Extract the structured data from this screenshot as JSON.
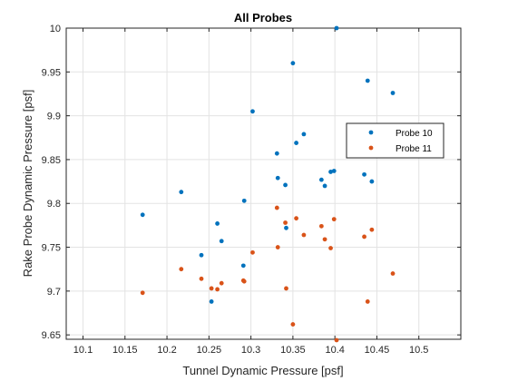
{
  "chart_data": {
    "type": "scatter",
    "title": "All Probes",
    "xlabel": "Tunnel Dynamic Pressure [psf]",
    "ylabel": "Rake Probe Dynamic Pressure [psf]",
    "xlim": [
      10.08,
      10.55
    ],
    "ylim": [
      9.645,
      10.0
    ],
    "xticks": [
      "10.1",
      "10.15",
      "10.2",
      "10.25",
      "10.3",
      "10.35",
      "10.4",
      "10.45",
      "10.5"
    ],
    "yticks": [
      "9.65",
      "9.7",
      "9.75",
      "9.8",
      "9.85",
      "9.9",
      "9.95",
      "10"
    ],
    "grid": true,
    "legend_position": "top-right",
    "series": [
      {
        "name": "Probe 10",
        "color": "#0072BD",
        "points": [
          [
            10.171,
            9.787
          ],
          [
            10.217,
            9.813
          ],
          [
            10.241,
            9.741
          ],
          [
            10.253,
            9.688
          ],
          [
            10.26,
            9.777
          ],
          [
            10.265,
            9.757
          ],
          [
            10.291,
            9.729
          ],
          [
            10.292,
            9.803
          ],
          [
            10.302,
            9.905
          ],
          [
            10.331,
            9.857
          ],
          [
            10.332,
            9.829
          ],
          [
            10.341,
            9.821
          ],
          [
            10.342,
            9.772
          ],
          [
            10.35,
            9.96
          ],
          [
            10.354,
            9.869
          ],
          [
            10.363,
            9.879
          ],
          [
            10.384,
            9.827
          ],
          [
            10.388,
            9.82
          ],
          [
            10.395,
            9.836
          ],
          [
            10.399,
            9.837
          ],
          [
            10.402,
            10.0
          ],
          [
            10.435,
            9.833
          ],
          [
            10.439,
            9.94
          ],
          [
            10.444,
            9.825
          ],
          [
            10.469,
            9.926
          ]
        ]
      },
      {
        "name": "Probe 11",
        "color": "#D95319",
        "points": [
          [
            10.171,
            9.698
          ],
          [
            10.217,
            9.725
          ],
          [
            10.241,
            9.714
          ],
          [
            10.253,
            9.703
          ],
          [
            10.26,
            9.702
          ],
          [
            10.265,
            9.709
          ],
          [
            10.291,
            9.712
          ],
          [
            10.292,
            9.711
          ],
          [
            10.302,
            9.744
          ],
          [
            10.331,
            9.795
          ],
          [
            10.332,
            9.75
          ],
          [
            10.341,
            9.778
          ],
          [
            10.342,
            9.703
          ],
          [
            10.35,
            9.662
          ],
          [
            10.354,
            9.783
          ],
          [
            10.363,
            9.764
          ],
          [
            10.384,
            9.774
          ],
          [
            10.388,
            9.759
          ],
          [
            10.395,
            9.749
          ],
          [
            10.399,
            9.782
          ],
          [
            10.402,
            9.644
          ],
          [
            10.435,
            9.762
          ],
          [
            10.439,
            9.688
          ],
          [
            10.444,
            9.77
          ],
          [
            10.469,
            9.72
          ]
        ]
      }
    ]
  }
}
